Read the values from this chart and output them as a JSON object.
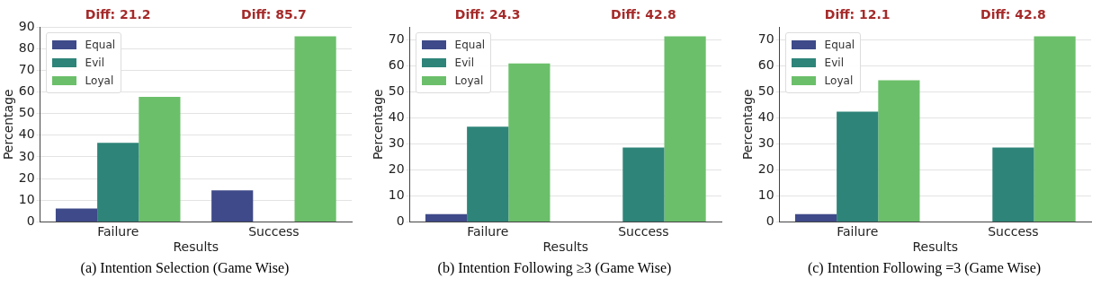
{
  "chart_data": [
    {
      "type": "bar",
      "title": "(a) Intention Selection (Game Wise)",
      "xlabel": "Results",
      "ylabel": "Percentage",
      "categories": [
        "Failure",
        "Success"
      ],
      "series": [
        {
          "name": "Equal",
          "color": "#3e4a89",
          "values": [
            6.2,
            14.5
          ]
        },
        {
          "name": "Evil",
          "color": "#2e8479",
          "values": [
            36.5,
            0
          ]
        },
        {
          "name": "Loyal",
          "color": "#6bbf6a",
          "values": [
            57.7,
            85.7
          ]
        }
      ],
      "ylim": [
        0,
        90
      ],
      "yticks": [
        0,
        10,
        20,
        30,
        40,
        50,
        60,
        70,
        80,
        90
      ],
      "grid": "y",
      "legend": "top left",
      "annotations": [
        "Diff: 21.2",
        "Diff: 85.7"
      ]
    },
    {
      "type": "bar",
      "title": "(b) Intention Following ≥3 (Game Wise)",
      "xlabel": "Results",
      "ylabel": "Percentage",
      "categories": [
        "Failure",
        "Success"
      ],
      "series": [
        {
          "name": "Equal",
          "color": "#3e4a89",
          "values": [
            3,
            0
          ]
        },
        {
          "name": "Evil",
          "color": "#2e8479",
          "values": [
            36.6,
            28.6
          ]
        },
        {
          "name": "Loyal",
          "color": "#6bbf6a",
          "values": [
            60.9,
            71.4
          ]
        }
      ],
      "ylim": [
        0,
        75
      ],
      "yticks": [
        0,
        10,
        20,
        30,
        40,
        50,
        60,
        70
      ],
      "grid": "y",
      "legend": "top left",
      "annotations": [
        "Diff: 24.3",
        "Diff: 42.8"
      ]
    },
    {
      "type": "bar",
      "title": "(c) Intention Following =3 (Game Wise)",
      "xlabel": "Results",
      "ylabel": "Percentage",
      "categories": [
        "Failure",
        "Success"
      ],
      "series": [
        {
          "name": "Equal",
          "color": "#3e4a89",
          "values": [
            3,
            0
          ]
        },
        {
          "name": "Evil",
          "color": "#2e8479",
          "values": [
            42.4,
            28.6
          ]
        },
        {
          "name": "Loyal",
          "color": "#6bbf6a",
          "values": [
            54.5,
            71.4
          ]
        }
      ],
      "ylim": [
        0,
        75
      ],
      "yticks": [
        0,
        10,
        20,
        30,
        40,
        50,
        60,
        70
      ],
      "grid": "y",
      "legend": "top left",
      "annotations": [
        "Diff: 12.1",
        "Diff: 42.8"
      ]
    }
  ]
}
